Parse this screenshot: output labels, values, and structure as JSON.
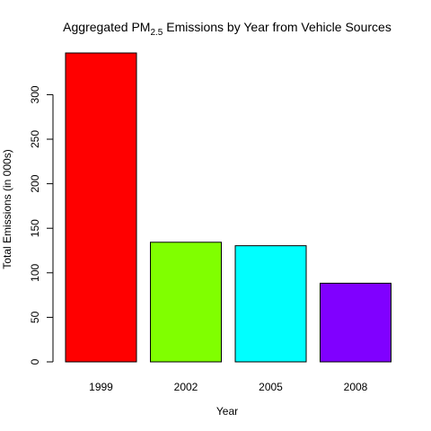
{
  "chart_data": {
    "type": "bar",
    "title_main": "Aggregated PM",
    "title_subscript": "2.5",
    "title_rest": " Emissions by Year from Vehicle Sources",
    "xlabel": "Year",
    "ylabel": "Total Emissions (in 000s)",
    "categories": [
      "1999",
      "2002",
      "2005",
      "2008"
    ],
    "values": [
      346.8,
      134.3,
      130.4,
      88.3
    ],
    "colors": [
      "#ff0000",
      "#80ff00",
      "#00ffff",
      "#8000ff"
    ],
    "ylim": [
      0,
      346.8
    ],
    "yticks": [
      0,
      50,
      100,
      150,
      200,
      250,
      300
    ],
    "grid": false,
    "legend": "none"
  }
}
